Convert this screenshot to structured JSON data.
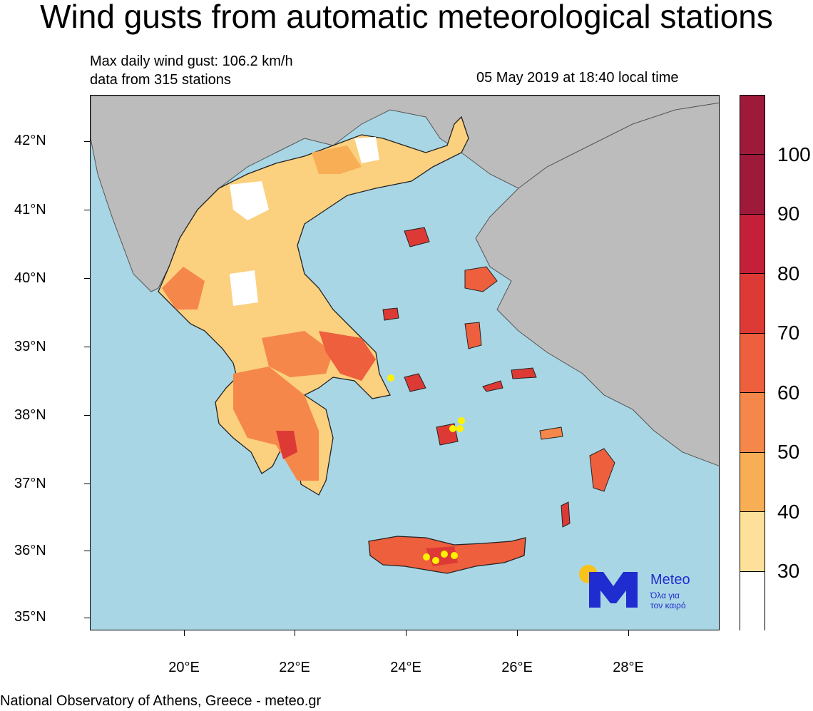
{
  "title": "Wind gusts from automatic meteorological stations",
  "info": {
    "max_gust": "Max daily wind gust: 106.2 km/h",
    "stations": "data from 315 stations",
    "datetime": "05 May 2019 at 18:40 local time"
  },
  "axes": {
    "lat_labels": [
      "42°N",
      "41°N",
      "40°N",
      "39°N",
      "38°N",
      "37°N",
      "36°N",
      "35°N"
    ],
    "lon_labels": [
      "20°E",
      "22°E",
      "24°E",
      "26°E",
      "28°E"
    ]
  },
  "colorbar": {
    "labels": [
      "100",
      "90",
      "80",
      "70",
      "60",
      "50",
      "40",
      "30"
    ],
    "colors": [
      "#9e1a3a",
      "#c4203a",
      "#dd3a36",
      "#ee5f3d",
      "#f5874a",
      "#f8ae55",
      "#fde19a",
      "#ffffff"
    ]
  },
  "logo": {
    "brand": "Meteo",
    "tagline_1": "Όλα για",
    "tagline_2": "τον καιρό"
  },
  "credit": "National Observatory of Athens, Greece - meteo.gr"
}
